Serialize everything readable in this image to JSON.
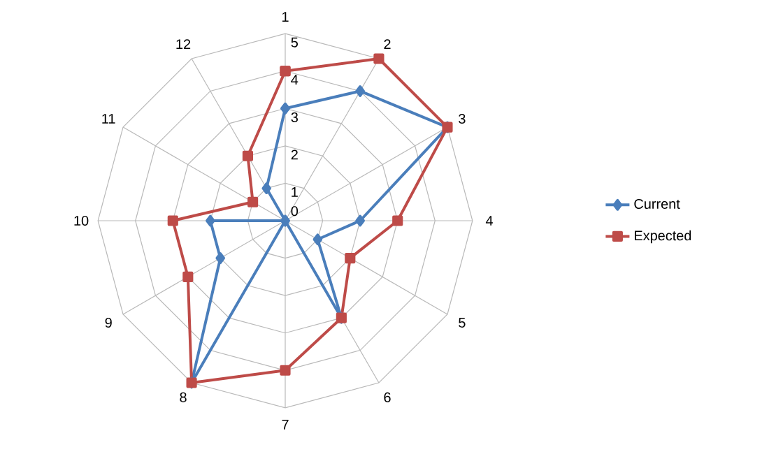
{
  "chart_data": {
    "type": "radar",
    "categories": [
      "1",
      "2",
      "3",
      "4",
      "5",
      "6",
      "7",
      "8",
      "9",
      "10",
      "11",
      "12"
    ],
    "ylim": [
      0,
      5
    ],
    "yticks": [
      0,
      1,
      2,
      3,
      4,
      5
    ],
    "grid": true,
    "legend": "right",
    "line_style": "solid",
    "series": [
      {
        "name": "Current",
        "color": "#4a7ebb",
        "marker": "diamond",
        "values": [
          3,
          4,
          5,
          2,
          1,
          3,
          0,
          5,
          2,
          2,
          0,
          1
        ]
      },
      {
        "name": "Expected",
        "color": "#be4b48",
        "marker": "square",
        "values": [
          4,
          5,
          5,
          3,
          2,
          3,
          4,
          5,
          3,
          3,
          1,
          2
        ]
      }
    ]
  }
}
